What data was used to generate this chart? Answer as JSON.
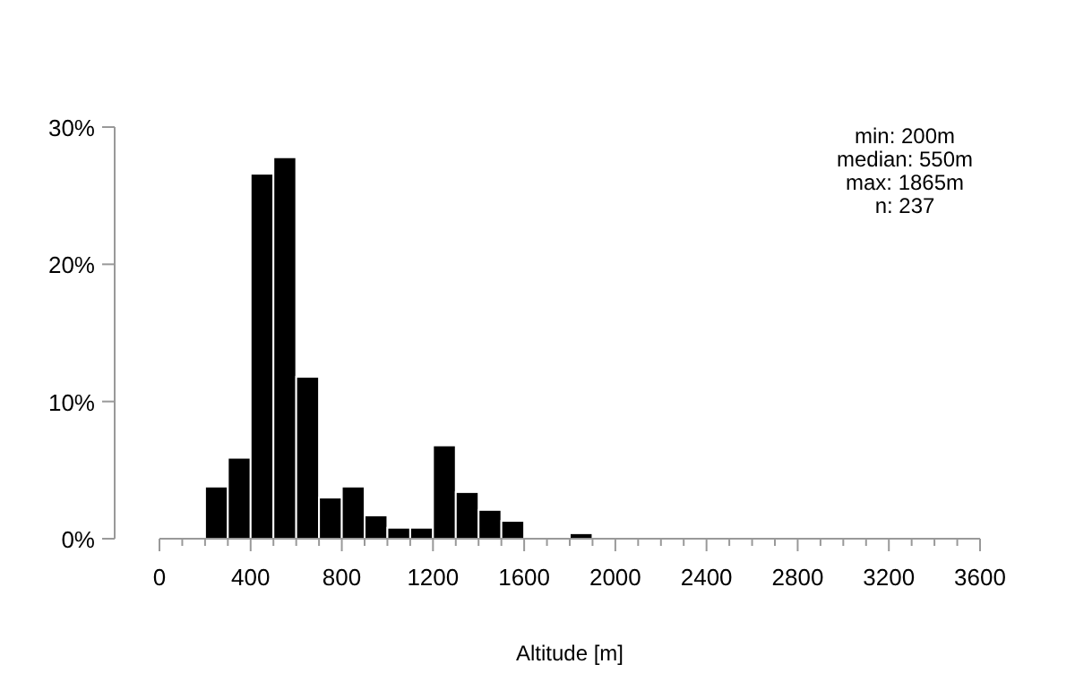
{
  "chart_data": {
    "type": "histogram",
    "xlabel": "Altitude [m]",
    "bins": [
      200,
      300,
      400,
      500,
      600,
      700,
      800,
      900,
      1000,
      1100,
      1200,
      1300,
      1400,
      1500,
      1600,
      1700,
      1800,
      1900
    ],
    "values": [
      3.8,
      5.9,
      26.6,
      27.8,
      11.8,
      3.0,
      3.8,
      1.7,
      0.8,
      0.8,
      6.8,
      3.4,
      2.1,
      1.3,
      0,
      0,
      0.4
    ],
    "color": "#000000",
    "xlim": [
      0,
      3600
    ],
    "xticks": [
      0,
      {
        "value": 100,
        "label": null
      },
      {
        "value": 200,
        "label": null
      },
      {
        "value": 300,
        "label": null
      },
      400,
      {
        "value": 500,
        "label": null
      },
      {
        "value": 600,
        "label": null
      },
      {
        "value": 700,
        "label": null
      },
      800,
      {
        "value": 900,
        "label": null
      },
      {
        "value": 1000,
        "label": null
      },
      {
        "value": 1100,
        "label": null
      },
      1200,
      {
        "value": 1300,
        "label": null
      },
      {
        "value": 1400,
        "label": null
      },
      {
        "value": 1500,
        "label": null
      },
      1600,
      {
        "value": 1700,
        "label": null
      },
      {
        "value": 1800,
        "label": null
      },
      {
        "value": 1900,
        "label": null
      },
      2000,
      {
        "value": 2100,
        "label": null
      },
      {
        "value": 2200,
        "label": null
      },
      {
        "value": 2300,
        "label": null
      },
      2400,
      {
        "value": 2500,
        "label": null
      },
      {
        "value": 2600,
        "label": null
      },
      {
        "value": 2700,
        "label": null
      },
      2800,
      {
        "value": 2900,
        "label": null
      },
      {
        "value": 3000,
        "label": null
      },
      {
        "value": 3100,
        "label": null
      },
      3200,
      {
        "value": 3300,
        "label": null
      },
      {
        "value": 3400,
        "label": null
      },
      {
        "value": 3500,
        "label": null
      },
      3600
    ],
    "ylim": [
      0,
      30
    ],
    "yticks": [
      {
        "value": 0,
        "label": "0%"
      },
      {
        "value": 10,
        "label": "10%"
      },
      {
        "value": 20,
        "label": "20%"
      },
      {
        "value": 30,
        "label": "30%"
      }
    ],
    "grid": false,
    "annotations": [
      "min: 200m",
      "median: 550m",
      "max: 1865m",
      "n:  237"
    ]
  }
}
